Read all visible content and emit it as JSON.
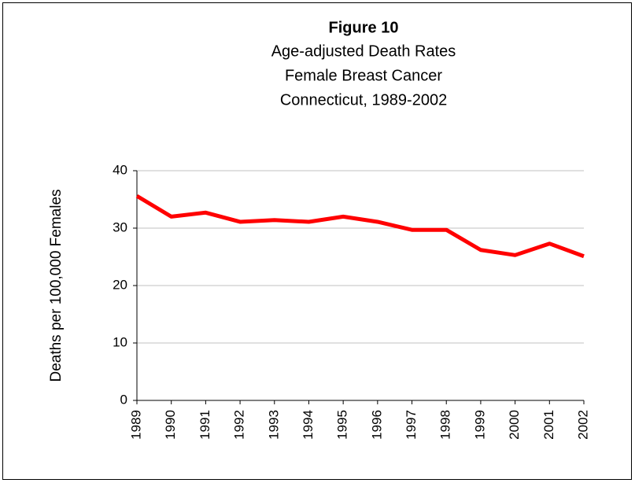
{
  "chart_data": {
    "type": "line",
    "title": "Figure 10",
    "subtitle": [
      "Age-adjusted Death Rates",
      "Female Breast Cancer",
      "Connecticut, 1989-2002"
    ],
    "y_label": "Deaths per 100,000 Females",
    "categories": [
      "1989",
      "1990",
      "1991",
      "1992",
      "1993",
      "1994",
      "1995",
      "1996",
      "1997",
      "1998",
      "1999",
      "2000",
      "2001",
      "2002"
    ],
    "values": [
      35.6,
      32.0,
      32.7,
      31.1,
      31.4,
      31.1,
      32.0,
      31.1,
      29.7,
      29.7,
      26.2,
      25.3,
      27.3,
      25.1
    ],
    "color": "#ff0000",
    "ylim": [
      0,
      40
    ],
    "yticks": [
      0,
      10,
      20,
      30,
      40
    ],
    "grid": true
  }
}
